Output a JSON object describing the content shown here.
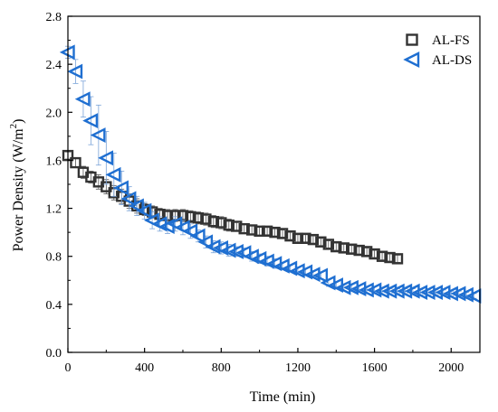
{
  "chart_data": {
    "type": "scatter",
    "xlabel": "Time (min)",
    "ylabel_main": "Power Density (W/m",
    "ylabel_sup": "2",
    "ylabel_end": ")",
    "xlim": [
      0,
      2150
    ],
    "ylim": [
      0,
      2.8
    ],
    "xticks": [
      0,
      400,
      800,
      1200,
      1600,
      2000
    ],
    "yticks": [
      0.0,
      0.4,
      0.8,
      1.2,
      1.6,
      2.0,
      2.4,
      2.8
    ],
    "ytick_labels": [
      "0.0",
      "0.4",
      "0.8",
      "1.2",
      "1.6",
      "2.0",
      "2.4",
      "2.8"
    ],
    "grid": false,
    "legend_position": "top-right",
    "series": [
      {
        "name": "AL-FS",
        "marker": "square",
        "color": "#333333",
        "x": [
          0,
          40,
          80,
          120,
          160,
          200,
          240,
          280,
          320,
          360,
          400,
          440,
          480,
          520,
          560,
          600,
          640,
          680,
          720,
          760,
          800,
          840,
          880,
          920,
          960,
          1000,
          1040,
          1080,
          1120,
          1160,
          1200,
          1240,
          1280,
          1320,
          1360,
          1400,
          1440,
          1480,
          1520,
          1560,
          1600,
          1640,
          1680,
          1720
        ],
        "y": [
          1.64,
          1.58,
          1.5,
          1.46,
          1.42,
          1.38,
          1.33,
          1.3,
          1.26,
          1.22,
          1.19,
          1.17,
          1.15,
          1.14,
          1.14,
          1.14,
          1.13,
          1.12,
          1.11,
          1.09,
          1.08,
          1.06,
          1.05,
          1.03,
          1.02,
          1.01,
          1.01,
          1.0,
          0.99,
          0.97,
          0.95,
          0.95,
          0.94,
          0.92,
          0.9,
          0.88,
          0.87,
          0.86,
          0.85,
          0.84,
          0.82,
          0.8,
          0.79,
          0.78
        ],
        "err": [
          0.03,
          0.04,
          0.05,
          0.05,
          0.06,
          0.06,
          0.06,
          0.06,
          0.06,
          0.06,
          0.05,
          0.05,
          0.05,
          0.05,
          0.05,
          0.05,
          0.05,
          0.05,
          0.05,
          0.05,
          0.05,
          0.05,
          0.04,
          0.04,
          0.04,
          0.04,
          0.03,
          0.03,
          0.03,
          0.03,
          0.03,
          0.03,
          0.03,
          0.03,
          0.03,
          0.03,
          0.03,
          0.03,
          0.03,
          0.03,
          0.03,
          0.03,
          0.03,
          0.03
        ]
      },
      {
        "name": "AL-DS",
        "marker": "triangle-left",
        "color": "#1f6fd1",
        "x": [
          0,
          40,
          80,
          120,
          160,
          200,
          240,
          280,
          320,
          360,
          400,
          440,
          480,
          520,
          560,
          600,
          640,
          680,
          720,
          760,
          800,
          840,
          880,
          920,
          960,
          1000,
          1040,
          1080,
          1120,
          1160,
          1200,
          1240,
          1280,
          1320,
          1360,
          1400,
          1440,
          1480,
          1520,
          1560,
          1600,
          1640,
          1680,
          1720,
          1760,
          1800,
          1840,
          1880,
          1920,
          1960,
          2000,
          2040,
          2080,
          2120
        ],
        "y": [
          2.5,
          2.34,
          2.11,
          1.93,
          1.81,
          1.62,
          1.48,
          1.37,
          1.28,
          1.22,
          1.18,
          1.1,
          1.07,
          1.05,
          1.07,
          1.04,
          1.01,
          0.97,
          0.92,
          0.88,
          0.87,
          0.85,
          0.84,
          0.83,
          0.8,
          0.78,
          0.76,
          0.74,
          0.72,
          0.7,
          0.68,
          0.67,
          0.65,
          0.64,
          0.58,
          0.56,
          0.54,
          0.54,
          0.53,
          0.52,
          0.52,
          0.51,
          0.51,
          0.51,
          0.51,
          0.51,
          0.5,
          0.5,
          0.5,
          0.5,
          0.49,
          0.49,
          0.48,
          0.47
        ],
        "err": [
          0.05,
          0.1,
          0.15,
          0.2,
          0.25,
          0.22,
          0.18,
          0.14,
          0.1,
          0.08,
          0.07,
          0.07,
          0.06,
          0.06,
          0.06,
          0.06,
          0.06,
          0.05,
          0.05,
          0.05,
          0.05,
          0.05,
          0.04,
          0.04,
          0.04,
          0.04,
          0.04,
          0.04,
          0.03,
          0.03,
          0.03,
          0.03,
          0.03,
          0.03,
          0.03,
          0.03,
          0.03,
          0.03,
          0.03,
          0.03,
          0.03,
          0.03,
          0.02,
          0.02,
          0.02,
          0.02,
          0.02,
          0.02,
          0.02,
          0.02,
          0.02,
          0.02,
          0.02,
          0.02
        ]
      }
    ]
  }
}
